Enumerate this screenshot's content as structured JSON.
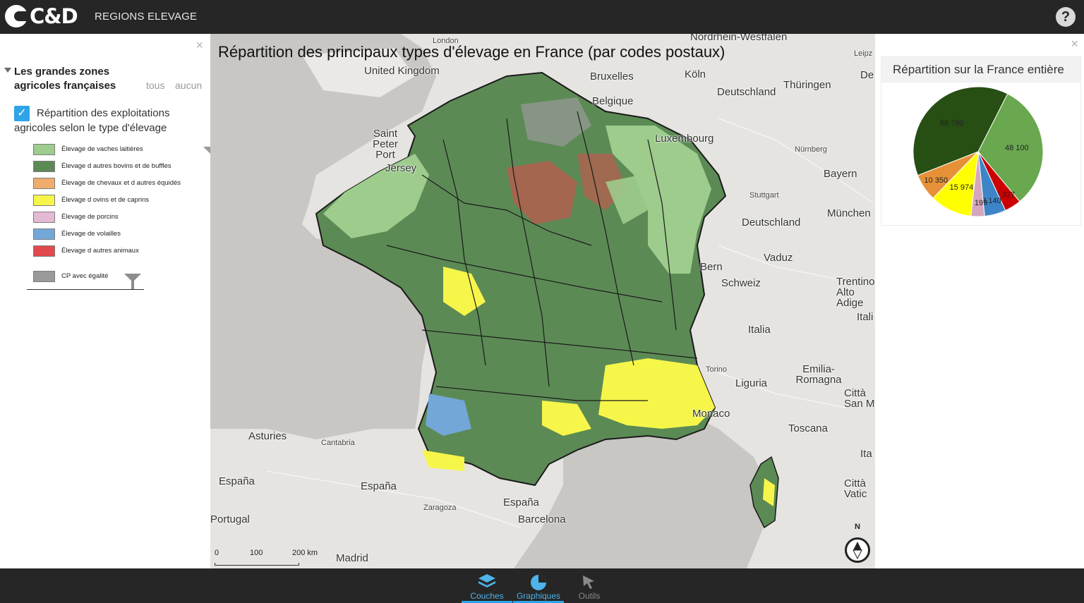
{
  "header": {
    "logo_text": "C&D",
    "app_title": "REGIONS ELEVAGE",
    "help_label": "?"
  },
  "left_panel": {
    "close_label": "×",
    "group_title": "Les grandes zones agricoles françaises",
    "group_all_label": "tous",
    "group_none_label": "aucun",
    "layer_checked": true,
    "layer_label": "Répartition des exploitations agricoles selon le type d'élevage",
    "legend": [
      {
        "label": "Élevage de vaches laitières",
        "color": "#9dcc8c"
      },
      {
        "label": "Élevage d autres bovins et de buffles",
        "color": "#5c8a55"
      },
      {
        "label": "Élevage de chevaux et d autres équidés",
        "color": "#f0ac6c"
      },
      {
        "label": "Élevage d ovins et de caprins",
        "color": "#f6f64a"
      },
      {
        "label": "Élevage de porcins",
        "color": "#e4b9d3"
      },
      {
        "label": "Élevage de volailles",
        "color": "#73a7d8"
      },
      {
        "label": "Élevage d autres animaux",
        "color": "#e1494c"
      },
      {
        "label": "CP avec égalité",
        "color": "#9a9a9a"
      }
    ]
  },
  "map": {
    "title": "Répartition des principaux types d'élevage en France (par codes postaux)",
    "places": [
      {
        "name": "London",
        "size": "small"
      },
      {
        "name": "United Kingdom",
        "size": "large"
      },
      {
        "name": "Bruxelles",
        "size": "large"
      },
      {
        "name": "Köln",
        "size": "large"
      },
      {
        "name": "Nordrhein-Westfalen",
        "size": "large"
      },
      {
        "name": "Deutschland",
        "size": "large"
      },
      {
        "name": "Thüringen",
        "size": "large"
      },
      {
        "name": "Belgique",
        "size": "large"
      },
      {
        "name": "Saint Peter Port",
        "size": "large"
      },
      {
        "name": "Jersey",
        "size": "large"
      },
      {
        "name": "Luxembourg",
        "size": "large"
      },
      {
        "name": "Nürnberg",
        "size": "small"
      },
      {
        "name": "Bayern",
        "size": "large"
      },
      {
        "name": "Stuttgart",
        "size": "small"
      },
      {
        "name": "München",
        "size": "large"
      },
      {
        "name": "Deutschland",
        "size": "large"
      },
      {
        "name": "Vaduz",
        "size": "large"
      },
      {
        "name": "Bern",
        "size": "large"
      },
      {
        "name": "Schweiz",
        "size": "large"
      },
      {
        "name": "Trentino-Alto Adige",
        "size": "large"
      },
      {
        "name": "Italia",
        "size": "large"
      },
      {
        "name": "Torino",
        "size": "small"
      },
      {
        "name": "Emilia-Romagna",
        "size": "large"
      },
      {
        "name": "Liguria",
        "size": "large"
      },
      {
        "name": "Toscana",
        "size": "large"
      },
      {
        "name": "Monaco",
        "size": "large"
      },
      {
        "name": "Asturies",
        "size": "large"
      },
      {
        "name": "Cantabria",
        "size": "small"
      },
      {
        "name": "España",
        "size": "large"
      },
      {
        "name": "España",
        "size": "large"
      },
      {
        "name": "España",
        "size": "large"
      },
      {
        "name": "Zaragoza",
        "size": "small"
      },
      {
        "name": "Barcelona",
        "size": "large"
      },
      {
        "name": "Portugal",
        "size": "large"
      },
      {
        "name": "Madrid",
        "size": "large"
      },
      {
        "name": "Leipz",
        "size": "small"
      },
      {
        "name": "De",
        "size": "large"
      },
      {
        "name": "Itali",
        "size": "large"
      },
      {
        "name": "Città San M",
        "size": "large"
      },
      {
        "name": "Ita",
        "size": "large"
      },
      {
        "name": "Città Vatic",
        "size": "large"
      }
    ],
    "scale_labels": [
      "0",
      "100",
      "200 km"
    ],
    "compass_label": "N"
  },
  "right_panel": {
    "close_label": "×",
    "chart_title": "Répartition sur la France entière"
  },
  "chart_data": {
    "type": "pie",
    "title": "Répartition sur la France entière",
    "slices": [
      {
        "label": "48 100",
        "value": 48100,
        "color": "#6aa84f"
      },
      {
        "label": "6 327",
        "value": 6327,
        "color": "#cc0000"
      },
      {
        "label": "8 140",
        "value": 8140,
        "color": "#3d85c6"
      },
      {
        "label": "5 199",
        "value": 5199,
        "color": "#d5a6bd"
      },
      {
        "label": "15 974",
        "value": 15974,
        "color": "#ffff00"
      },
      {
        "label": "10 350",
        "value": 10350,
        "color": "#e69138"
      },
      {
        "label": "58 780",
        "value": 58780,
        "color": "#274e13"
      }
    ]
  },
  "bottom_tabs": [
    {
      "label": "Couches",
      "state": "active"
    },
    {
      "label": "Graphiques",
      "state": "active"
    },
    {
      "label": "Outils",
      "state": "inactive"
    }
  ]
}
